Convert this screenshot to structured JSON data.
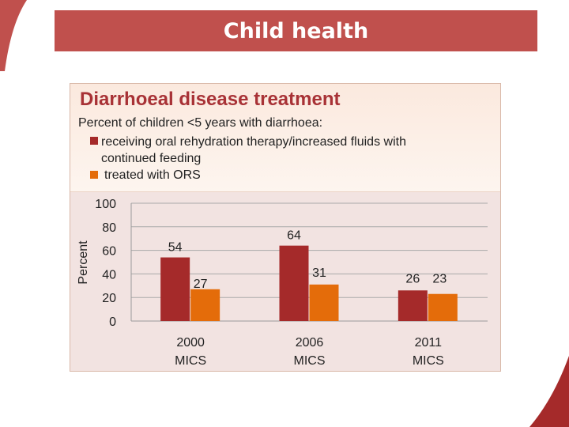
{
  "slide": {
    "title": "Child health"
  },
  "colors": {
    "accent": "#c0504d",
    "series1": "#a52a2a",
    "series2": "#e46c0a",
    "title_text": "#a83236"
  },
  "chart_data": {
    "type": "bar",
    "title": "Diarrhoeal disease treatment",
    "subtitle": "Percent of children <5 years with diarrhoea:",
    "ylabel": "Percent",
    "xlabel": "",
    "ylim": [
      0,
      100
    ],
    "yticks": [
      "0",
      "20",
      "40",
      "60",
      "80",
      "100"
    ],
    "categories": [
      {
        "line1": "2000",
        "line2": "MICS"
      },
      {
        "line1": "2006",
        "line2": "MICS"
      },
      {
        "line1": "2011",
        "line2": "MICS"
      }
    ],
    "series": [
      {
        "name": "receiving oral rehydration therapy/increased fluids with continued feeding",
        "values": [
          54,
          64,
          26
        ]
      },
      {
        "name": "treated with ORS",
        "values": [
          27,
          31,
          23
        ]
      }
    ],
    "grid": true,
    "legend": "top-left"
  }
}
